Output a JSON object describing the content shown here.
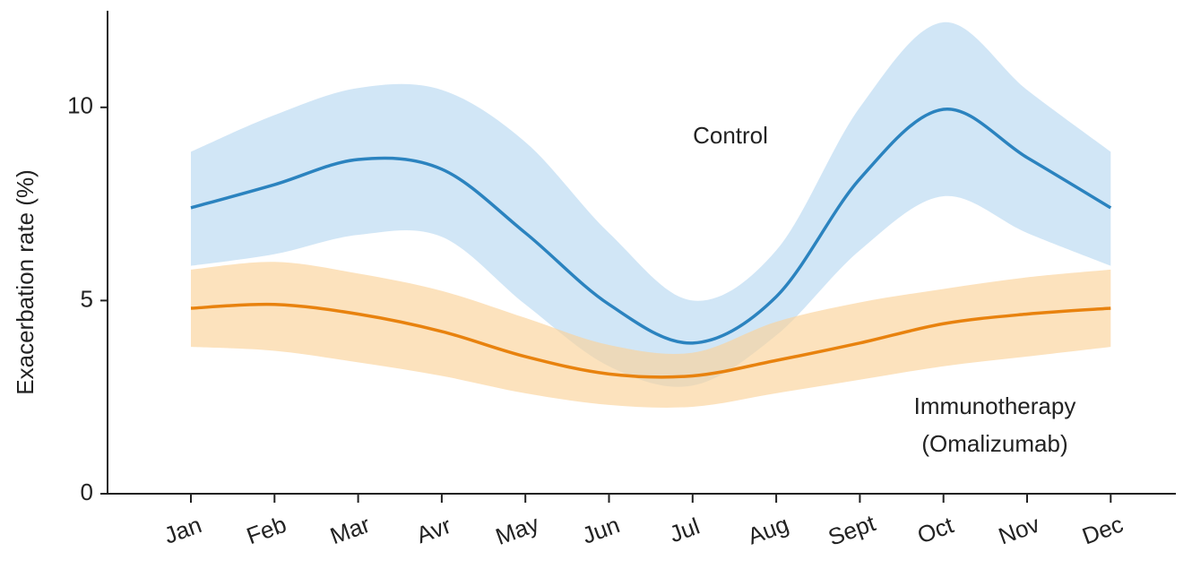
{
  "chart_data": {
    "type": "line",
    "y_label": "Exacerbation rate (%)",
    "categories": [
      "Jan",
      "Feb",
      "Mar",
      "Avr",
      "May",
      "Jun",
      "Jul",
      "Aug",
      "Sept",
      "Oct",
      "Nov",
      "Dec"
    ],
    "ylim": [
      0,
      12.5
    ],
    "yticks": [
      0,
      5,
      10
    ],
    "grid": false,
    "series": [
      {
        "name": "Control",
        "color": "#2b83bf",
        "band_color": "#b9d9f1",
        "values": [
          7.4,
          8.0,
          8.65,
          8.4,
          6.75,
          4.9,
          3.9,
          5.1,
          8.15,
          9.95,
          8.7,
          7.4
        ],
        "upper": [
          8.85,
          9.8,
          10.5,
          10.45,
          9.1,
          6.75,
          5.0,
          6.3,
          10.0,
          12.2,
          10.45,
          8.85
        ],
        "lower": [
          5.9,
          6.2,
          6.7,
          6.65,
          4.9,
          3.3,
          2.8,
          4.1,
          6.3,
          7.7,
          6.75,
          5.9
        ]
      },
      {
        "name": "Immunotherapy",
        "note": "(Omalizumab)",
        "color": "#e8820e",
        "band_color": "#fbd29a",
        "values": [
          4.8,
          4.9,
          4.65,
          4.2,
          3.55,
          3.1,
          3.05,
          3.45,
          3.9,
          4.4,
          4.65,
          4.8
        ],
        "upper": [
          5.8,
          6.0,
          5.7,
          5.25,
          4.55,
          3.85,
          3.65,
          4.45,
          4.95,
          5.3,
          5.6,
          5.8
        ],
        "lower": [
          3.8,
          3.7,
          3.4,
          3.05,
          2.6,
          2.3,
          2.25,
          2.6,
          2.95,
          3.3,
          3.55,
          3.8
        ]
      }
    ]
  }
}
